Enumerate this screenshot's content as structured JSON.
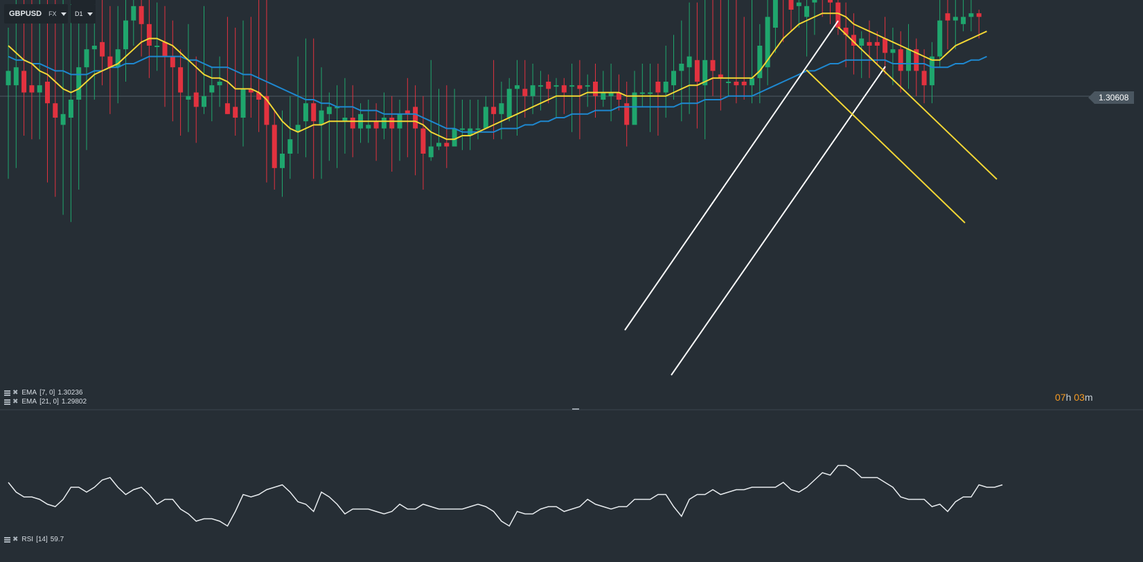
{
  "toolbar": {
    "symbol": "GBPUSD",
    "symbol_type": "FX",
    "timeframe": "D1"
  },
  "price_label": "1.30608",
  "countdown": {
    "hours": "07",
    "hours_unit": "h",
    "minutes": "03",
    "minutes_unit": "m"
  },
  "indicators": {
    "ema7": {
      "name": "EMA",
      "params": "[7, 0]",
      "value": "1.30236",
      "color": "#f2d635"
    },
    "ema21": {
      "name": "EMA",
      "params": "[21, 0]",
      "value": "1.29802",
      "color": "#1e88d0"
    },
    "rsi": {
      "name": "RSI",
      "params": "[14]",
      "value": "59.7",
      "color": "#e8ecef"
    }
  },
  "colors": {
    "background": "#262e35",
    "bull": "#1fa66d",
    "bear": "#e2323f",
    "trendline_white": "#ffffff",
    "trendline_yellow": "#f2d635"
  },
  "icons": [
    "caret-down-icon",
    "menu-icon",
    "close-icon"
  ],
  "chart_data": {
    "type": "candlestick",
    "y_range": [
      0,
      1000
    ],
    "candles": [
      [
        84,
        88,
        58,
        100
      ],
      [
        84,
        89,
        61,
        117
      ],
      [
        88,
        82,
        70,
        115
      ],
      [
        84,
        82,
        69,
        116
      ],
      [
        82,
        84,
        69,
        117
      ],
      [
        85,
        79,
        57,
        118
      ],
      [
        79,
        75,
        53,
        121
      ],
      [
        73,
        76,
        48,
        116
      ],
      [
        75,
        80,
        46,
        119
      ],
      [
        80,
        89,
        55,
        136
      ],
      [
        89,
        94,
        66,
        139
      ],
      [
        94,
        95,
        80,
        112
      ],
      [
        96,
        92,
        84,
        110
      ],
      [
        92,
        89,
        76,
        106
      ],
      [
        89,
        94,
        79,
        106
      ],
      [
        94,
        102,
        85,
        113
      ],
      [
        102,
        106,
        95,
        119
      ],
      [
        106,
        101,
        92,
        110
      ],
      [
        101,
        95,
        86,
        109
      ],
      [
        95,
        95,
        88,
        107
      ],
      [
        96,
        92,
        78,
        106
      ],
      [
        92,
        89,
        74,
        102
      ],
      [
        89,
        82,
        70,
        94
      ],
      [
        80,
        81,
        71,
        101
      ],
      [
        82,
        78,
        68,
        92
      ],
      [
        78,
        81,
        76,
        106
      ],
      [
        82,
        84,
        74,
        89
      ],
      [
        84,
        85,
        78,
        92
      ],
      [
        79,
        76,
        76,
        103
      ],
      [
        78,
        75,
        70,
        100
      ],
      [
        75,
        83,
        67,
        102
      ],
      [
        83,
        82,
        75,
        103
      ],
      [
        82,
        80,
        71,
        108
      ],
      [
        81,
        73,
        57,
        108
      ],
      [
        73,
        61,
        55,
        77
      ],
      [
        61,
        65,
        53,
        77
      ],
      [
        65,
        69,
        58,
        81
      ],
      [
        71,
        73,
        65,
        92
      ],
      [
        74,
        79,
        64,
        97
      ],
      [
        79,
        74,
        58,
        97
      ],
      [
        73,
        77,
        58,
        89
      ],
      [
        76,
        78,
        63,
        82
      ],
      [
        78,
        78,
        61,
        84
      ],
      [
        74,
        75,
        65,
        86
      ],
      [
        75,
        72,
        64,
        84
      ],
      [
        72,
        76,
        68,
        79
      ],
      [
        72,
        73,
        68,
        80
      ],
      [
        74,
        72,
        63,
        79
      ],
      [
        72,
        75,
        69,
        82
      ],
      [
        75,
        72,
        60,
        81
      ],
      [
        72,
        76,
        63,
        80
      ],
      [
        77,
        76,
        64,
        86
      ],
      [
        78,
        72,
        59,
        84
      ],
      [
        72,
        65,
        55,
        81
      ],
      [
        64,
        67,
        63,
        91
      ],
      [
        67,
        68,
        66,
        83
      ],
      [
        68,
        67,
        61,
        84
      ],
      [
        67,
        72,
        68,
        83
      ],
      [
        72,
        72,
        66,
        80
      ],
      [
        70,
        72,
        66,
        80
      ],
      [
        72,
        72,
        69,
        80
      ],
      [
        72,
        78,
        73,
        81
      ],
      [
        78,
        76,
        69,
        91
      ],
      [
        76,
        79,
        69,
        85
      ],
      [
        75,
        83,
        74,
        86
      ],
      [
        83,
        84,
        70,
        91
      ],
      [
        83,
        81,
        75,
        91
      ],
      [
        81,
        84,
        76,
        90
      ],
      [
        84,
        84,
        77,
        88
      ],
      [
        85,
        83,
        79,
        87
      ],
      [
        84,
        84,
        75,
        86
      ],
      [
        84,
        82,
        76,
        86
      ],
      [
        84,
        84,
        71,
        90
      ],
      [
        84,
        83,
        69,
        91
      ],
      [
        84,
        84,
        78,
        87
      ],
      [
        85,
        81,
        75,
        90
      ],
      [
        80,
        82,
        78,
        88
      ],
      [
        81,
        82,
        74,
        90
      ],
      [
        82,
        80,
        77,
        87
      ],
      [
        79,
        73,
        67,
        85
      ],
      [
        73,
        82,
        75,
        88
      ],
      [
        82,
        82,
        78,
        90
      ],
      [
        82,
        82,
        71,
        90
      ],
      [
        85,
        82,
        70,
        90
      ],
      [
        82,
        85,
        75,
        95
      ],
      [
        84,
        88,
        80,
        98
      ],
      [
        88,
        90,
        74,
        102
      ],
      [
        89,
        92,
        76,
        107
      ],
      [
        91,
        85,
        72,
        107
      ],
      [
        84,
        91,
        69,
        114
      ],
      [
        91,
        88,
        81,
        112
      ],
      [
        87,
        86,
        77,
        113
      ],
      [
        85,
        85,
        81,
        116
      ],
      [
        85,
        84,
        79,
        108
      ],
      [
        85,
        84,
        80,
        103
      ],
      [
        84,
        86,
        79,
        108
      ],
      [
        86,
        95,
        79,
        101
      ],
      [
        89,
        103,
        84,
        109
      ],
      [
        100,
        110,
        93,
        113
      ],
      [
        110,
        109,
        96,
        112
      ],
      [
        111,
        105,
        99,
        115
      ],
      [
        106,
        107,
        100,
        114
      ],
      [
        103,
        106,
        92,
        114
      ],
      [
        107,
        110,
        98,
        114
      ],
      [
        110,
        108,
        103,
        112
      ],
      [
        110,
        107,
        101,
        118
      ],
      [
        107,
        100,
        98,
        116
      ],
      [
        100,
        98,
        89,
        107
      ],
      [
        98,
        95,
        87,
        104
      ],
      [
        95,
        97,
        86,
        99
      ],
      [
        96,
        95,
        86,
        102
      ],
      [
        96,
        95,
        90,
        99
      ],
      [
        97,
        93,
        87,
        103
      ],
      [
        93,
        94,
        84,
        100
      ],
      [
        94,
        88,
        82,
        99
      ],
      [
        88,
        94,
        83,
        101
      ],
      [
        94,
        88,
        81,
        97
      ],
      [
        88,
        84,
        79,
        94
      ],
      [
        84,
        92,
        79,
        96
      ],
      [
        92,
        102,
        89,
        115
      ],
      [
        104,
        102,
        94,
        111
      ],
      [
        102,
        103,
        94,
        112
      ],
      [
        101,
        103,
        99,
        114
      ],
      [
        103,
        104,
        99,
        112
      ],
      [
        104,
        103,
        97,
        105
      ]
    ],
    "ema7_series": [
      95,
      93,
      91,
      90,
      88,
      87,
      85,
      83,
      82,
      83,
      85,
      87,
      88,
      89,
      90,
      92,
      94,
      96,
      97,
      97,
      96,
      95,
      93,
      91,
      89,
      87,
      86,
      86,
      85,
      83,
      83,
      83,
      82,
      80,
      77,
      74,
      72,
      71,
      72,
      73,
      73,
      74,
      74,
      74,
      74,
      74,
      74,
      74,
      74,
      74,
      74,
      74,
      74,
      73,
      71,
      70,
      69,
      69,
      70,
      70,
      71,
      72,
      73,
      74,
      75,
      76,
      77,
      78,
      79,
      80,
      81,
      81,
      81,
      81,
      82,
      82,
      82,
      82,
      82,
      81,
      81,
      81,
      81,
      81,
      81,
      82,
      83,
      84,
      84,
      85,
      86,
      86,
      86,
      86,
      86,
      86,
      88,
      91,
      94,
      97,
      99,
      101,
      102,
      103,
      104,
      104,
      104,
      103,
      101,
      100,
      99,
      98,
      97,
      96,
      95,
      94,
      93,
      92,
      91,
      91,
      93,
      95,
      96,
      97,
      98,
      99
    ],
    "ema21_series": [
      92,
      91,
      91,
      90,
      90,
      89,
      88,
      88,
      87,
      87,
      87,
      88,
      88,
      89,
      89,
      90,
      90,
      91,
      92,
      92,
      92,
      92,
      92,
      91,
      91,
      90,
      89,
      89,
      89,
      88,
      87,
      87,
      86,
      85,
      84,
      83,
      82,
      81,
      80,
      80,
      79,
      79,
      78,
      78,
      78,
      77,
      77,
      77,
      76,
      76,
      76,
      76,
      76,
      75,
      74,
      73,
      72,
      72,
      71,
      71,
      71,
      71,
      71,
      72,
      72,
      72,
      73,
      73,
      74,
      74,
      75,
      75,
      76,
      76,
      76,
      77,
      77,
      77,
      78,
      78,
      78,
      78,
      78,
      78,
      78,
      78,
      79,
      79,
      79,
      80,
      80,
      80,
      81,
      81,
      81,
      81,
      82,
      83,
      84,
      85,
      86,
      87,
      88,
      88,
      89,
      90,
      90,
      91,
      91,
      91,
      91,
      91,
      91,
      90,
      90,
      90,
      90,
      90,
      89,
      89,
      89,
      90,
      90,
      91,
      91,
      92
    ],
    "rsi_series": [
      58,
      54,
      52,
      52,
      51,
      49,
      48,
      51,
      56,
      56,
      54,
      56,
      59,
      60,
      56,
      53,
      55,
      56,
      53,
      49,
      51,
      51,
      47,
      45,
      42,
      43,
      43,
      42,
      40,
      46,
      53,
      52,
      53,
      55,
      56,
      57,
      54,
      50,
      49,
      46,
      54,
      52,
      49,
      45,
      47,
      47,
      47,
      46,
      45,
      46,
      49,
      47,
      47,
      49,
      48,
      47,
      47,
      47,
      47,
      48,
      49,
      48,
      46,
      42,
      40,
      46,
      45,
      45,
      47,
      48,
      48,
      46,
      47,
      48,
      51,
      49,
      48,
      47,
      48,
      48,
      51,
      51,
      51,
      53,
      53,
      48,
      44,
      51,
      53,
      53,
      55,
      53,
      54,
      55,
      55,
      56,
      56,
      56,
      56,
      58,
      55,
      54,
      56,
      59,
      62,
      61,
      65,
      65,
      63,
      60,
      60,
      60,
      58,
      56,
      52,
      51,
      51,
      51,
      48,
      49,
      46,
      50,
      52,
      52,
      57,
      56,
      56,
      57
    ]
  }
}
